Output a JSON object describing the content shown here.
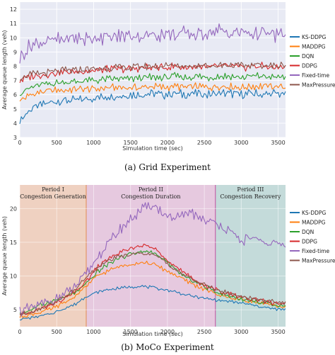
{
  "chart_data": [
    {
      "type": "line",
      "caption": "(a)  Grid Experiment",
      "xlabel": "Simulation time (sec)",
      "ylabel": "Average queue length (veh)",
      "xlim": [
        0,
        3600
      ],
      "ylim": [
        3,
        12.5
      ],
      "xticks": [
        0,
        500,
        1000,
        1500,
        2000,
        2500,
        3000,
        3500
      ],
      "yticks": [
        3,
        4,
        5,
        6,
        7,
        8,
        9,
        10,
        11,
        12
      ],
      "grid": true,
      "legend_position": "right",
      "series": [
        {
          "name": "KS-DDPG",
          "color": "#1f77b4",
          "x": [
            0,
            150,
            300,
            450,
            600,
            750,
            900,
            1050,
            1200,
            1350,
            1500,
            1650,
            1800,
            1950,
            2100,
            2250,
            2400,
            2550,
            2700,
            2850,
            3000,
            3150,
            3300,
            3450,
            3600
          ],
          "y": [
            4.2,
            5.0,
            5.3,
            5.5,
            5.6,
            5.6,
            5.7,
            5.8,
            5.9,
            5.9,
            6.0,
            6.0,
            6.1,
            6.0,
            6.1,
            6.0,
            6.1,
            6.0,
            6.1,
            6.1,
            6.0,
            6.1,
            6.0,
            6.1,
            6.0
          ]
        },
        {
          "name": "MADDPG",
          "color": "#ff7f0e",
          "x": [
            0,
            150,
            300,
            450,
            600,
            750,
            900,
            1050,
            1200,
            1350,
            1500,
            1650,
            1800,
            1950,
            2100,
            2250,
            2400,
            2550,
            2700,
            2850,
            3000,
            3150,
            3300,
            3450,
            3600
          ],
          "y": [
            5.6,
            6.0,
            6.2,
            6.3,
            6.3,
            6.4,
            6.4,
            6.4,
            6.5,
            6.5,
            6.5,
            6.5,
            6.6,
            6.5,
            6.6,
            6.5,
            6.6,
            6.5,
            6.6,
            6.6,
            6.5,
            6.6,
            6.6,
            6.6,
            6.5
          ]
        },
        {
          "name": "DQN",
          "color": "#2ca02c",
          "x": [
            0,
            150,
            300,
            450,
            600,
            750,
            900,
            1050,
            1200,
            1350,
            1500,
            1650,
            1800,
            1950,
            2100,
            2250,
            2400,
            2550,
            2700,
            2850,
            3000,
            3150,
            3300,
            3450,
            3600
          ],
          "y": [
            6.1,
            6.5,
            6.7,
            6.8,
            6.9,
            6.9,
            7.0,
            7.0,
            7.1,
            7.1,
            7.1,
            7.2,
            7.2,
            7.2,
            7.3,
            7.2,
            7.3,
            7.2,
            7.3,
            7.3,
            7.2,
            7.3,
            7.3,
            7.2,
            7.3
          ]
        },
        {
          "name": "DDPG",
          "color": "#d62728",
          "x": [
            0,
            150,
            300,
            450,
            600,
            750,
            900,
            1050,
            1200,
            1350,
            1500,
            1650,
            1800,
            1950,
            2100,
            2250,
            2400,
            2550,
            2700,
            2850,
            3000,
            3150,
            3300,
            3450,
            3600
          ],
          "y": [
            7.0,
            7.3,
            7.4,
            7.5,
            7.6,
            7.6,
            7.7,
            7.7,
            7.8,
            7.8,
            7.8,
            7.9,
            7.9,
            7.9,
            8.0,
            7.9,
            8.0,
            7.9,
            8.0,
            8.0,
            7.9,
            8.0,
            8.0,
            7.9,
            8.0
          ]
        },
        {
          "name": "Fixed-time",
          "color": "#9467bd",
          "x": [
            0,
            150,
            300,
            450,
            600,
            750,
            900,
            1050,
            1200,
            1350,
            1500,
            1650,
            1800,
            1950,
            2100,
            2250,
            2400,
            2550,
            2700,
            2850,
            3000,
            3150,
            3300,
            3450,
            3600
          ],
          "y": [
            8.6,
            9.5,
            9.7,
            9.8,
            9.9,
            10.0,
            9.9,
            10.1,
            10.0,
            10.1,
            10.2,
            10.1,
            10.2,
            10.3,
            10.2,
            10.3,
            10.2,
            10.4,
            10.5,
            10.3,
            10.4,
            10.3,
            10.3,
            10.2,
            10.2
          ]
        },
        {
          "name": "MaxPressure",
          "color": "#8c564b",
          "x": [
            0,
            150,
            300,
            450,
            600,
            750,
            900,
            1050,
            1200,
            1350,
            1500,
            1650,
            1800,
            1950,
            2100,
            2250,
            2400,
            2550,
            2700,
            2850,
            3000,
            3150,
            3300,
            3450,
            3600
          ],
          "y": [
            7.2,
            7.4,
            7.5,
            7.6,
            7.7,
            7.7,
            7.8,
            7.8,
            7.9,
            7.9,
            7.9,
            8.0,
            8.0,
            8.0,
            8.1,
            8.0,
            8.1,
            8.0,
            8.1,
            8.1,
            8.0,
            8.1,
            8.1,
            8.0,
            8.1
          ]
        }
      ]
    },
    {
      "type": "line",
      "caption": "(b)  MoCo Experiment",
      "xlabel": "Simulation time (sec)",
      "ylabel": "Average queue length (veh)",
      "xlim": [
        0,
        3600
      ],
      "ylim": [
        2.5,
        23.5
      ],
      "xticks": [
        0,
        500,
        1000,
        1500,
        2000,
        2500,
        3000,
        3500
      ],
      "yticks": [
        5,
        10,
        15,
        20
      ],
      "grid": true,
      "legend_position": "right",
      "periods": [
        {
          "label1": "Period I",
          "label2": "Congestion Generation",
          "x0": 0,
          "x1": 900,
          "color": "#f1c8b0"
        },
        {
          "label1": "Period II",
          "label2": "Congestion Duration",
          "x0": 900,
          "x1": 2650,
          "color": "#e6bdd8"
        },
        {
          "label1": "Period III",
          "label2": "Congestion Recovery",
          "x0": 2650,
          "x1": 3600,
          "color": "#b8d6d2"
        }
      ],
      "series": [
        {
          "name": "KS-DDPG",
          "color": "#1f77b4",
          "x": [
            0,
            150,
            300,
            450,
            600,
            750,
            900,
            1050,
            1200,
            1350,
            1500,
            1650,
            1800,
            1950,
            2100,
            2250,
            2400,
            2550,
            2700,
            2850,
            3000,
            3150,
            3300,
            3450,
            3600
          ],
          "y": [
            3.6,
            3.8,
            4.1,
            4.5,
            5.2,
            5.8,
            7.0,
            7.6,
            8.0,
            8.2,
            8.4,
            8.5,
            8.3,
            8.0,
            7.7,
            7.2,
            6.9,
            6.6,
            6.4,
            6.2,
            6.0,
            5.7,
            5.4,
            5.1,
            5.0
          ]
        },
        {
          "name": "MADDPG",
          "color": "#ff7f0e",
          "x": [
            0,
            150,
            300,
            450,
            600,
            750,
            900,
            1050,
            1200,
            1350,
            1500,
            1650,
            1800,
            1950,
            2100,
            2250,
            2400,
            2550,
            2700,
            2850,
            3000,
            3150,
            3300,
            3450,
            3600
          ],
          "y": [
            4.0,
            4.3,
            4.7,
            5.2,
            6.0,
            7.0,
            8.5,
            10.0,
            10.8,
            11.4,
            11.8,
            12.0,
            11.8,
            11.0,
            10.2,
            9.3,
            8.5,
            7.8,
            7.2,
            6.8,
            6.5,
            6.2,
            5.9,
            5.6,
            5.4
          ]
        },
        {
          "name": "DQN",
          "color": "#2ca02c",
          "x": [
            0,
            150,
            300,
            450,
            600,
            750,
            900,
            1050,
            1200,
            1350,
            1500,
            1650,
            1800,
            1950,
            2100,
            2250,
            2400,
            2550,
            2700,
            2850,
            3000,
            3150,
            3300,
            3450,
            3600
          ],
          "y": [
            4.4,
            5.0,
            5.8,
            6.3,
            6.8,
            7.5,
            8.8,
            10.6,
            11.8,
            12.7,
            13.3,
            13.6,
            13.5,
            12.5,
            11.0,
            9.8,
            9.0,
            8.2,
            7.5,
            7.0,
            6.6,
            6.3,
            6.0,
            5.8,
            5.6
          ]
        },
        {
          "name": "DDPG",
          "color": "#d62728",
          "x": [
            0,
            150,
            300,
            450,
            600,
            750,
            900,
            1050,
            1200,
            1350,
            1500,
            1650,
            1800,
            1950,
            2100,
            2250,
            2400,
            2550,
            2700,
            2850,
            3000,
            3150,
            3300,
            3450,
            3600
          ],
          "y": [
            4.2,
            4.6,
            5.2,
            5.8,
            6.6,
            7.6,
            9.2,
            11.3,
            12.6,
            13.4,
            14.0,
            14.6,
            14.2,
            13.0,
            11.5,
            10.2,
            9.2,
            8.4,
            7.8,
            7.3,
            6.9,
            6.6,
            6.3,
            6.0,
            5.8
          ]
        },
        {
          "name": "Fixed-time",
          "color": "#9467bd",
          "x": [
            0,
            150,
            300,
            450,
            600,
            750,
            900,
            1050,
            1200,
            1350,
            1500,
            1650,
            1800,
            1950,
            2100,
            2250,
            2400,
            2550,
            2700,
            2850,
            3000,
            3150,
            3300,
            3450,
            3600
          ],
          "y": [
            4.8,
            5.2,
            5.8,
            6.5,
            7.2,
            8.4,
            10.2,
            12.8,
            14.8,
            16.8,
            18.4,
            19.8,
            20.6,
            19.2,
            18.2,
            19.4,
            19.0,
            18.0,
            17.8,
            16.4,
            15.2,
            15.8,
            14.6,
            15.0,
            14.4
          ]
        },
        {
          "name": "MaxPressure",
          "color": "#8c564b",
          "x": [
            0,
            150,
            300,
            450,
            600,
            750,
            900,
            1050,
            1200,
            1350,
            1500,
            1650,
            1800,
            1950,
            2100,
            2250,
            2400,
            2550,
            2700,
            2850,
            3000,
            3150,
            3300,
            3450,
            3600
          ],
          "y": [
            4.3,
            4.7,
            5.3,
            6.0,
            6.9,
            8.0,
            9.8,
            11.2,
            12.3,
            12.9,
            13.2,
            13.4,
            13.2,
            12.3,
            11.0,
            10.0,
            9.2,
            8.5,
            7.9,
            7.4,
            7.0,
            6.7,
            6.4,
            6.2,
            6.0
          ]
        }
      ]
    }
  ]
}
